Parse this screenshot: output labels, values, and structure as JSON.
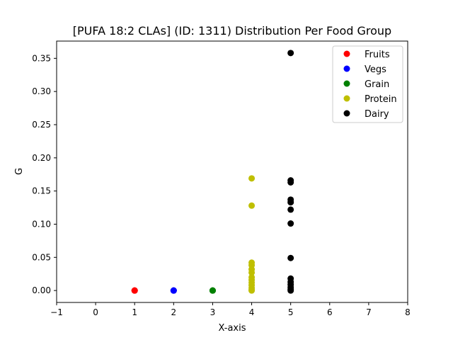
{
  "chart_data": {
    "type": "scatter",
    "title": "[PUFA 18:2 CLAs] (ID: 1311) Distribution Per Food Group",
    "xlabel": "X-axis",
    "ylabel": "G",
    "xlim": [
      -1,
      8
    ],
    "ylim": [
      -0.018,
      0.376
    ],
    "xticks": [
      -1,
      0,
      1,
      2,
      3,
      4,
      5,
      6,
      7,
      8
    ],
    "yticks": [
      0.0,
      0.05,
      0.1,
      0.15,
      0.2,
      0.25,
      0.3,
      0.35
    ],
    "ytick_labels": [
      "0.00",
      "0.05",
      "0.10",
      "0.15",
      "0.20",
      "0.25",
      "0.30",
      "0.35"
    ],
    "grid": false,
    "legend_position": "top-right",
    "series": [
      {
        "name": "Fruits",
        "color": "#ff0000",
        "points": [
          [
            1,
            0.0
          ],
          [
            1,
            0.0
          ],
          [
            1,
            0.0
          ]
        ]
      },
      {
        "name": "Vegs",
        "color": "#0000ff",
        "points": [
          [
            2,
            0.0
          ],
          [
            2,
            0.0
          ],
          [
            2,
            0.0
          ]
        ]
      },
      {
        "name": "Grain",
        "color": "#008000",
        "points": [
          [
            3,
            0.0
          ],
          [
            3,
            0.0
          ],
          [
            3,
            0.0
          ]
        ]
      },
      {
        "name": "Protein",
        "color": "#bfbf00",
        "points": [
          [
            4,
            0.169
          ],
          [
            4,
            0.128
          ],
          [
            4,
            0.042
          ],
          [
            4,
            0.038
          ],
          [
            4,
            0.032
          ],
          [
            4,
            0.027
          ],
          [
            4,
            0.02
          ],
          [
            4,
            0.016
          ],
          [
            4,
            0.012
          ],
          [
            4,
            0.008
          ],
          [
            4,
            0.004
          ],
          [
            4,
            0.001
          ],
          [
            4,
            0.0
          ]
        ]
      },
      {
        "name": "Dairy",
        "color": "#000000",
        "points": [
          [
            5,
            0.358
          ],
          [
            5,
            0.166
          ],
          [
            5,
            0.163
          ],
          [
            5,
            0.137
          ],
          [
            5,
            0.133
          ],
          [
            5,
            0.122
          ],
          [
            5,
            0.101
          ],
          [
            5,
            0.049
          ],
          [
            5,
            0.018
          ],
          [
            5,
            0.013
          ],
          [
            5,
            0.009
          ],
          [
            5,
            0.005
          ],
          [
            5,
            0.002
          ],
          [
            5,
            0.0
          ]
        ]
      }
    ]
  }
}
